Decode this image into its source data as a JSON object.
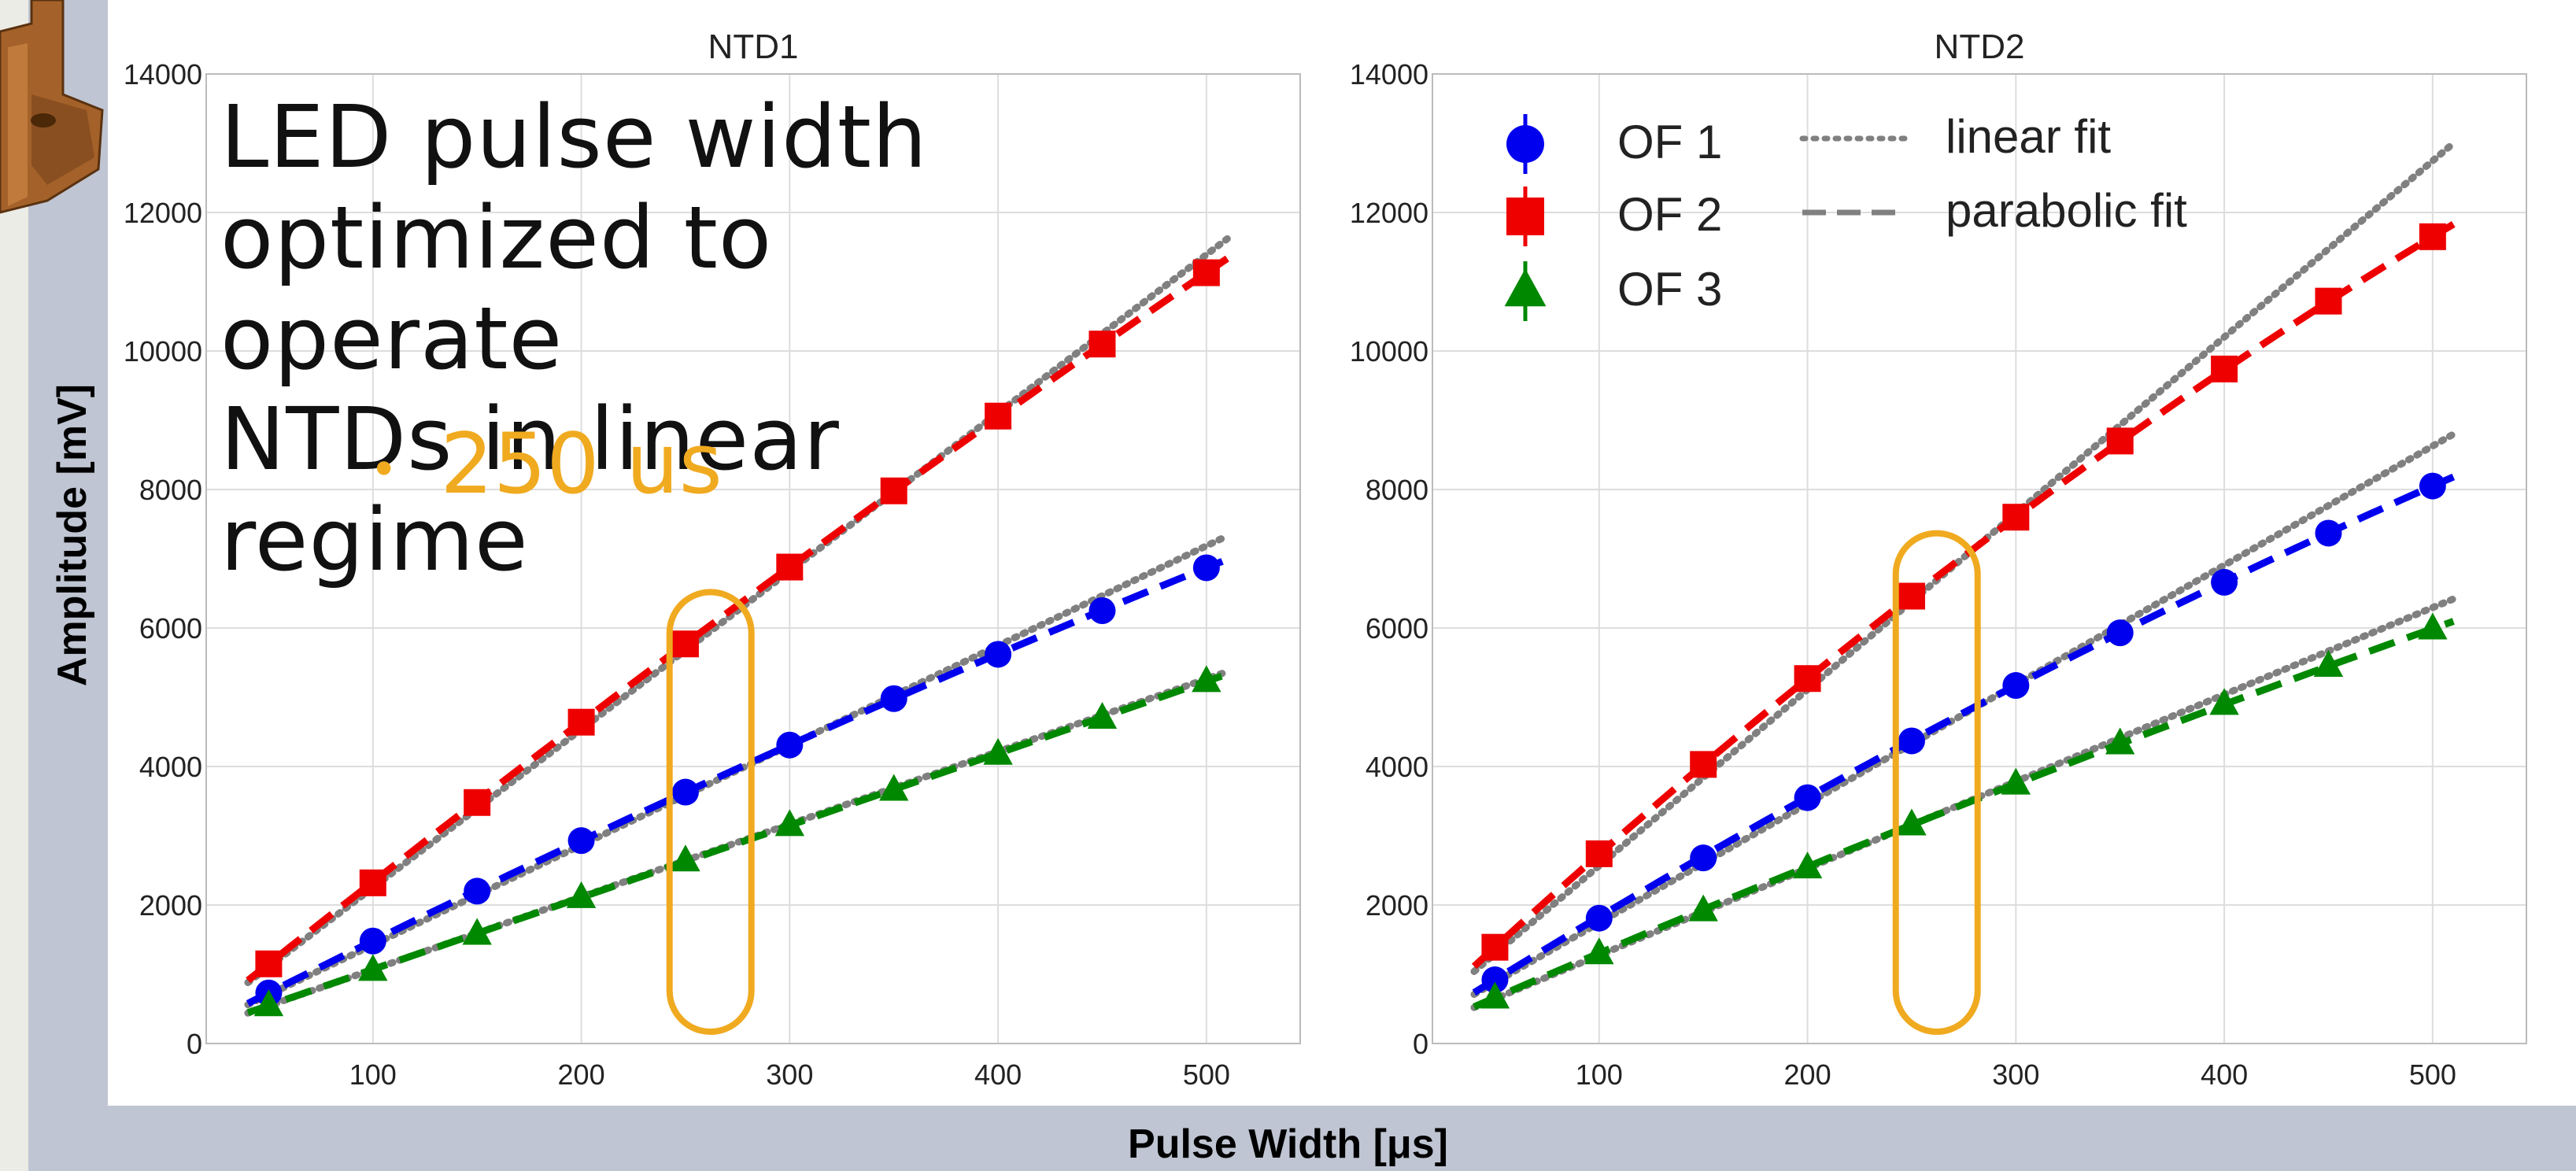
{
  "annotation": {
    "lines": [
      "LED pulse width",
      "optimized to operate",
      "NTDs in linear regime"
    ],
    "bullet_marker": "•",
    "bullet": "250 us",
    "highlight_color": "#f0aa20"
  },
  "colors": {
    "OF 1": "#0000ee",
    "OF 2": "#ee0000",
    "OF 3": "#008800",
    "linear fit": "#808080",
    "parabolic fit": "#808080"
  },
  "chart_data": [
    {
      "type": "line",
      "title": "NTD1",
      "xlabel": "Pulse Width [μs]",
      "ylabel": "Amplitude [mV]",
      "xlim": [
        20,
        545
      ],
      "ylim": [
        0,
        14000
      ],
      "xticks": [
        100,
        200,
        300,
        400,
        500
      ],
      "yticks": [
        0,
        2000,
        4000,
        6000,
        8000,
        10000,
        12000,
        14000
      ],
      "grid": true,
      "highlight_x": 262,
      "x": [
        50,
        100,
        150,
        200,
        250,
        300,
        350,
        400,
        450,
        500
      ],
      "series": [
        {
          "name": "OF 1",
          "marker": "circle",
          "values": [
            730,
            1480,
            2200,
            2930,
            3630,
            4310,
            4980,
            5620,
            6250,
            6870
          ]
        },
        {
          "name": "OF 2",
          "marker": "square",
          "values": [
            1150,
            2320,
            3480,
            4640,
            5770,
            6880,
            7980,
            9060,
            10100,
            11130
          ]
        },
        {
          "name": "OF 3",
          "marker": "triangle",
          "values": [
            550,
            1060,
            1580,
            2110,
            2640,
            3150,
            3660,
            4180,
            4700,
            5230
          ]
        }
      ],
      "fits": [
        {
          "name": "linear fit",
          "style": "dotted",
          "series": "OF 1",
          "x": [
            40,
            510
          ],
          "y": [
            560,
            7330
          ]
        },
        {
          "name": "linear fit",
          "style": "dotted",
          "series": "OF 2",
          "x": [
            40,
            510
          ],
          "y": [
            880,
            11620
          ]
        },
        {
          "name": "linear fit",
          "style": "dotted",
          "series": "OF 3",
          "x": [
            40,
            510
          ],
          "y": [
            440,
            5370
          ]
        }
      ]
    },
    {
      "type": "line",
      "title": "NTD2",
      "xlabel": "Pulse Width [μs]",
      "ylabel": "Amplitude [mV]",
      "xlim": [
        20,
        545
      ],
      "ylim": [
        0,
        14000
      ],
      "xticks": [
        100,
        200,
        300,
        400,
        500
      ],
      "yticks": [
        0,
        2000,
        4000,
        6000,
        8000,
        10000,
        12000,
        14000
      ],
      "grid": true,
      "highlight_x": 262,
      "legend": {
        "placement": "top-left",
        "entries": [
          "OF 1",
          "OF 2",
          "OF 3",
          "linear fit",
          "parabolic fit"
        ]
      },
      "x": [
        50,
        100,
        150,
        200,
        250,
        300,
        350,
        400,
        450,
        500
      ],
      "series": [
        {
          "name": "OF 1",
          "marker": "circle",
          "values": [
            920,
            1810,
            2680,
            3550,
            4370,
            5170,
            5930,
            6660,
            7370,
            8050
          ]
        },
        {
          "name": "OF 2",
          "marker": "square",
          "values": [
            1390,
            2740,
            4030,
            5270,
            6460,
            7600,
            8700,
            9740,
            10720,
            11650
          ]
        },
        {
          "name": "OF 3",
          "marker": "triangle",
          "values": [
            660,
            1300,
            1920,
            2540,
            3160,
            3750,
            4330,
            4900,
            5450,
            5990
          ]
        }
      ],
      "fits": [
        {
          "name": "linear fit",
          "style": "dotted",
          "series": "OF 1",
          "x": [
            40,
            510
          ],
          "y": [
            710,
            8800
          ]
        },
        {
          "name": "linear fit",
          "style": "dotted",
          "series": "OF 2",
          "x": [
            40,
            510
          ],
          "y": [
            1040,
            13000
          ]
        },
        {
          "name": "linear fit",
          "style": "dotted",
          "series": "OF 3",
          "x": [
            40,
            510
          ],
          "y": [
            520,
            6420
          ]
        }
      ]
    }
  ]
}
